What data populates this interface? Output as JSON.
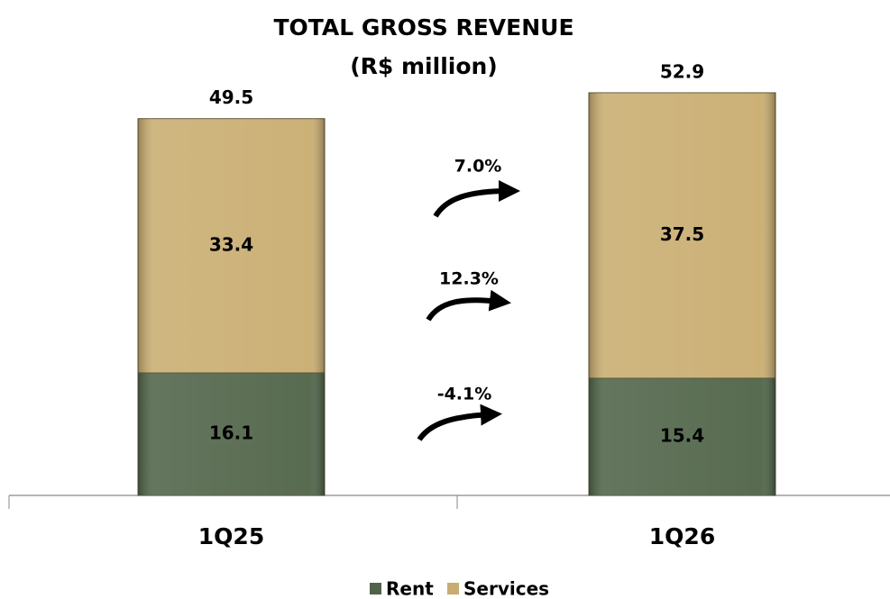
{
  "chart_data": {
    "type": "stacked_bar",
    "title": "TOTAL GROSS REVENUE",
    "subtitle": "(R$ million)",
    "categories": [
      "1Q25",
      "1Q26"
    ],
    "series": [
      {
        "name": "Rent",
        "color": "#4f6448",
        "values": [
          16.1,
          15.4
        ]
      },
      {
        "name": "Services",
        "color": "#c9ad70",
        "values": [
          33.4,
          37.5
        ]
      }
    ],
    "totals": [
      49.5,
      52.9
    ],
    "annotations": [
      "7.0%",
      "12.3%",
      "-4.1%"
    ],
    "legend": "bottom"
  }
}
